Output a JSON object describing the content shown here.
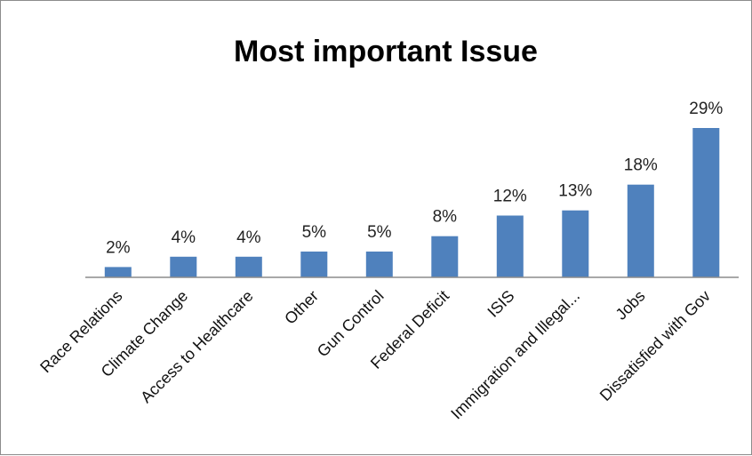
{
  "chart_data": {
    "type": "bar",
    "title": "Most important Issue",
    "xlabel": "",
    "ylabel": "",
    "categories": [
      "Race Relations",
      "Climate Change",
      "Access to Healthcare",
      "Other",
      "Gun Control",
      "Federal Deficit",
      "ISIS",
      "Immigration and Illegal...",
      "Jobs",
      "Dissatisfied with Gov"
    ],
    "values": [
      2,
      4,
      4,
      5,
      5,
      8,
      12,
      13,
      18,
      29
    ],
    "data_labels": [
      "2%",
      "4%",
      "4%",
      "5%",
      "5%",
      "8%",
      "12%",
      "13%",
      "18%",
      "29%"
    ],
    "ylim": [
      0,
      29
    ],
    "grid": false,
    "legend": "none",
    "bar_color": "#4f81bd"
  }
}
